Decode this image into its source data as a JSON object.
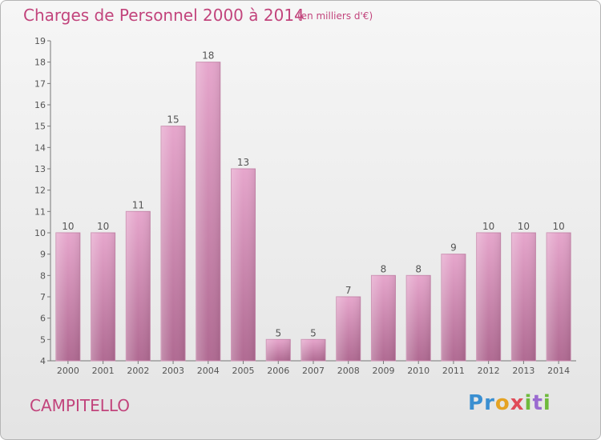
{
  "chart_data": {
    "type": "bar",
    "title": "Charges de Personnel 2000 à 2014",
    "subtitle": "(en milliers d'€)",
    "categories": [
      "2000",
      "2001",
      "2002",
      "2003",
      "2004",
      "2005",
      "2006",
      "2007",
      "2008",
      "2009",
      "2010",
      "2011",
      "2012",
      "2013",
      "2014"
    ],
    "values": [
      10,
      10,
      11,
      15,
      18,
      13,
      5,
      5,
      7,
      8,
      8,
      9,
      10,
      10,
      10
    ],
    "ylim": [
      4,
      19
    ],
    "yticks": [
      4,
      5,
      6,
      7,
      8,
      9,
      10,
      11,
      12,
      13,
      14,
      15,
      16,
      17,
      18,
      19
    ],
    "xlabel": "",
    "ylabel": "",
    "grid": false,
    "bar_color": "#d98bb5"
  },
  "place_name": "CAMPITELLO",
  "logo": {
    "text": "Proxiti",
    "colors": [
      "#3a8fd1",
      "#e5a323",
      "#6fba3c",
      "#e04c58",
      "#9a6ad0"
    ]
  },
  "colors": {
    "title": "#c2447c",
    "axis": "#555555"
  }
}
